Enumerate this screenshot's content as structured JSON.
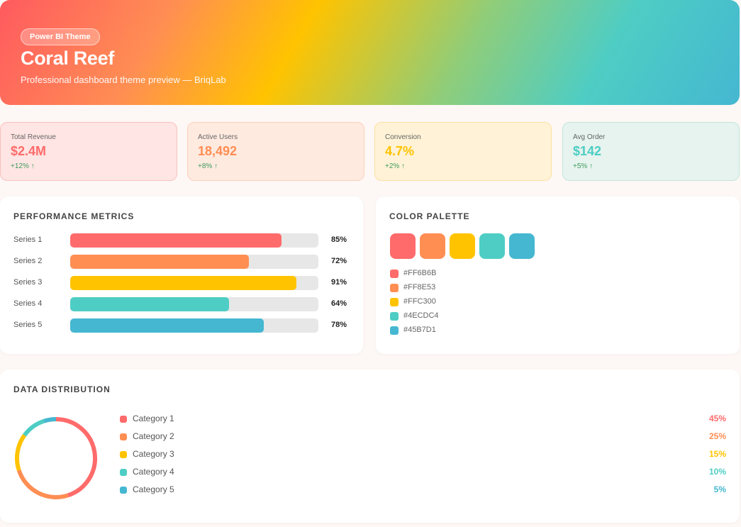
{
  "header": {
    "badge": "Power BI Theme",
    "title": "Coral Reef",
    "subtitle": "Professional dashboard theme preview — BriqLab"
  },
  "kpis": [
    {
      "label": "Total Revenue",
      "value": "$2.4M",
      "delta": "+12% ↑",
      "color": "#ff6b6b",
      "bg": "#ffe5e3",
      "border": "#f7c2c0"
    },
    {
      "label": "Active Users",
      "value": "18,492",
      "delta": "+8% ↑",
      "color": "#ff8e53",
      "bg": "#ffeae0",
      "border": "#fbd0bb"
    },
    {
      "label": "Conversion",
      "value": "4.7%",
      "delta": "+2% ↑",
      "color": "#ffc300",
      "bg": "#fff2d6",
      "border": "#fbe0a1"
    },
    {
      "label": "Avg Order",
      "value": "$142",
      "delta": "+5% ↑",
      "color": "#4ecdc4",
      "bg": "#e6f3ee",
      "border": "#c2e6dd"
    }
  ],
  "performance": {
    "title": "PERFORMANCE METRICS",
    "series": [
      {
        "label": "Series 1",
        "value": 85,
        "display": "85%",
        "color": "#ff6b6b"
      },
      {
        "label": "Series 2",
        "value": 72,
        "display": "72%",
        "color": "#ff8e53"
      },
      {
        "label": "Series 3",
        "value": 91,
        "display": "91%",
        "color": "#ffc300"
      },
      {
        "label": "Series 4",
        "value": 64,
        "display": "64%",
        "color": "#4ecdc4"
      },
      {
        "label": "Series 5",
        "value": 78,
        "display": "78%",
        "color": "#45b7d1"
      }
    ]
  },
  "palette": {
    "title": "COLOR PALETTE",
    "colors": [
      "#FF6B6B",
      "#FF8E53",
      "#FFC300",
      "#4ECDC4",
      "#45B7D1"
    ]
  },
  "distribution": {
    "title": "DATA DISTRIBUTION",
    "categories": [
      {
        "name": "Category 1",
        "value": 45,
        "display": "45%",
        "color": "#ff6b6b"
      },
      {
        "name": "Category 2",
        "value": 25,
        "display": "25%",
        "color": "#ff8e53"
      },
      {
        "name": "Category 3",
        "value": 15,
        "display": "15%",
        "color": "#ffc300"
      },
      {
        "name": "Category 4",
        "value": 10,
        "display": "10%",
        "color": "#4ecdc4"
      },
      {
        "name": "Category 5",
        "value": 5,
        "display": "5%",
        "color": "#45b7d1"
      }
    ]
  },
  "chart_data": [
    {
      "type": "bar",
      "title": "PERFORMANCE METRICS",
      "categories": [
        "Series 1",
        "Series 2",
        "Series 3",
        "Series 4",
        "Series 5"
      ],
      "values": [
        85,
        72,
        91,
        64,
        78
      ],
      "ylim": [
        0,
        100
      ]
    },
    {
      "type": "pie",
      "title": "DATA DISTRIBUTION",
      "categories": [
        "Category 1",
        "Category 2",
        "Category 3",
        "Category 4",
        "Category 5"
      ],
      "values": [
        45,
        25,
        15,
        10,
        5
      ]
    }
  ]
}
